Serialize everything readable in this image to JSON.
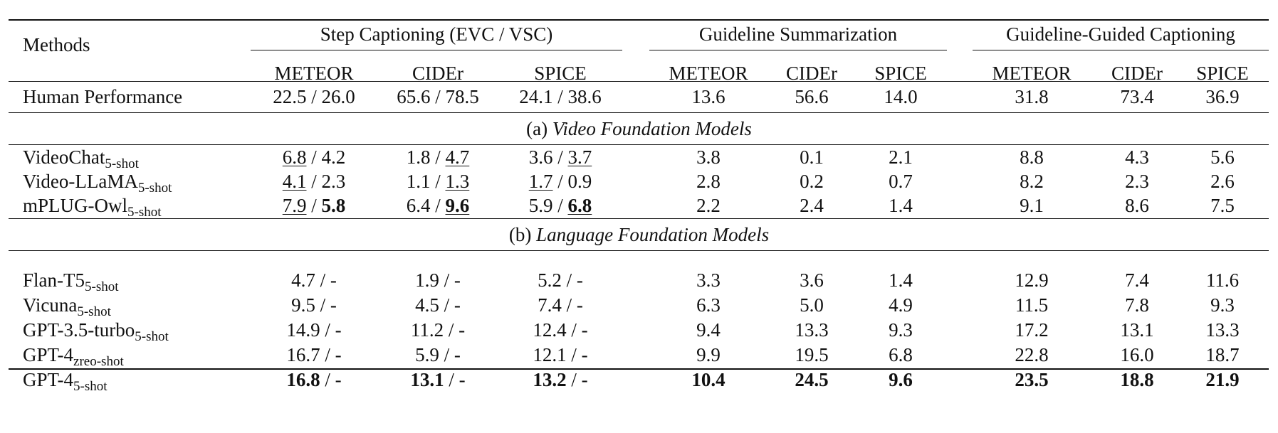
{
  "header": {
    "methods": "Methods",
    "groups": [
      "Step Captioning (EVC / VSC)",
      "Guideline Summarization",
      "Guideline-Guided Captioning"
    ],
    "metrics": [
      "METEOR",
      "CIDEr",
      "SPICE",
      "METEOR",
      "CIDEr",
      "SPICE",
      "METEOR",
      "CIDEr",
      "SPICE"
    ]
  },
  "human_row": {
    "name": "Human Performance",
    "cells": [
      [
        {
          "t": "22.5 / 26.0"
        }
      ],
      [
        {
          "t": "65.6 / 78.5"
        }
      ],
      [
        {
          "t": "24.1 / 38.6"
        }
      ],
      [
        {
          "t": "13.6"
        }
      ],
      [
        {
          "t": "56.6"
        }
      ],
      [
        {
          "t": "14.0"
        }
      ],
      [
        {
          "t": "31.8"
        }
      ],
      [
        {
          "t": "73.4"
        }
      ],
      [
        {
          "t": "36.9"
        }
      ]
    ]
  },
  "sections": [
    {
      "label_prefix": "(a) ",
      "label_italic": "Video Foundation Models",
      "rows": [
        {
          "name": "VideoChat",
          "sub": "5-shot",
          "cells": [
            [
              {
                "t": "6.8",
                "u": true
              },
              {
                "t": " / 4.2"
              }
            ],
            [
              {
                "t": "1.8 / "
              },
              {
                "t": "4.7",
                "u": true
              }
            ],
            [
              {
                "t": "3.6 / "
              },
              {
                "t": "3.7",
                "u": true
              }
            ],
            [
              {
                "t": "3.8"
              }
            ],
            [
              {
                "t": "0.1"
              }
            ],
            [
              {
                "t": "2.1"
              }
            ],
            [
              {
                "t": "8.8"
              }
            ],
            [
              {
                "t": "4.3"
              }
            ],
            [
              {
                "t": "5.6"
              }
            ]
          ]
        },
        {
          "name": "Video-LLaMA",
          "sub": "5-shot",
          "cells": [
            [
              {
                "t": "4.1",
                "u": true
              },
              {
                "t": " / 2.3"
              }
            ],
            [
              {
                "t": "1.1 / "
              },
              {
                "t": "1.3",
                "u": true
              }
            ],
            [
              {
                "t": "1.7",
                "u": true
              },
              {
                "t": " / 0.9"
              }
            ],
            [
              {
                "t": "2.8"
              }
            ],
            [
              {
                "t": "0.2"
              }
            ],
            [
              {
                "t": "0.7"
              }
            ],
            [
              {
                "t": "8.2"
              }
            ],
            [
              {
                "t": "2.3"
              }
            ],
            [
              {
                "t": "2.6"
              }
            ]
          ]
        },
        {
          "name": "mPLUG-Owl",
          "sub": "5-shot",
          "cells": [
            [
              {
                "t": "7.9",
                "u": true
              },
              {
                "t": " / "
              },
              {
                "t": "5.8",
                "b": true
              }
            ],
            [
              {
                "t": "6.4 / "
              },
              {
                "t": "9.6",
                "b": true,
                "u": true
              }
            ],
            [
              {
                "t": "5.9 / "
              },
              {
                "t": "6.8",
                "b": true,
                "u": true
              }
            ],
            [
              {
                "t": "2.2"
              }
            ],
            [
              {
                "t": "2.4"
              }
            ],
            [
              {
                "t": "1.4"
              }
            ],
            [
              {
                "t": "9.1"
              }
            ],
            [
              {
                "t": "8.6"
              }
            ],
            [
              {
                "t": "7.5"
              }
            ]
          ]
        }
      ]
    },
    {
      "label_prefix": "(b) ",
      "label_italic": "Language Foundation Models",
      "rows": [
        {
          "name": "Flan-T5",
          "sub": "5-shot",
          "cells": [
            [
              {
                "t": "4.7 / -"
              }
            ],
            [
              {
                "t": "1.9 / -"
              }
            ],
            [
              {
                "t": "5.2 / -"
              }
            ],
            [
              {
                "t": "3.3"
              }
            ],
            [
              {
                "t": "3.6"
              }
            ],
            [
              {
                "t": "1.4"
              }
            ],
            [
              {
                "t": "12.9"
              }
            ],
            [
              {
                "t": "7.4"
              }
            ],
            [
              {
                "t": "11.6"
              }
            ]
          ]
        },
        {
          "name": "Vicuna",
          "sub": "5-shot",
          "cells": [
            [
              {
                "t": "9.5 / -"
              }
            ],
            [
              {
                "t": "4.5 / -"
              }
            ],
            [
              {
                "t": "7.4 / -"
              }
            ],
            [
              {
                "t": "6.3"
              }
            ],
            [
              {
                "t": "5.0"
              }
            ],
            [
              {
                "t": "4.9"
              }
            ],
            [
              {
                "t": "11.5"
              }
            ],
            [
              {
                "t": "7.8"
              }
            ],
            [
              {
                "t": "9.3"
              }
            ]
          ]
        },
        {
          "name": "GPT-3.5-turbo",
          "sub": "5-shot",
          "cells": [
            [
              {
                "t": "14.9 / -"
              }
            ],
            [
              {
                "t": "11.2 / -"
              }
            ],
            [
              {
                "t": "12.4 / -"
              }
            ],
            [
              {
                "t": "9.4"
              }
            ],
            [
              {
                "t": "13.3"
              }
            ],
            [
              {
                "t": "9.3"
              }
            ],
            [
              {
                "t": "17.2"
              }
            ],
            [
              {
                "t": "13.1"
              }
            ],
            [
              {
                "t": "13.3"
              }
            ]
          ]
        },
        {
          "name": "GPT-4",
          "sub": "zreo-shot",
          "cells": [
            [
              {
                "t": "16.7 / -"
              }
            ],
            [
              {
                "t": "5.9 / -"
              }
            ],
            [
              {
                "t": "12.1 / -"
              }
            ],
            [
              {
                "t": "9.9"
              }
            ],
            [
              {
                "t": "19.5"
              }
            ],
            [
              {
                "t": "6.8"
              }
            ],
            [
              {
                "t": "22.8"
              }
            ],
            [
              {
                "t": "16.0"
              }
            ],
            [
              {
                "t": "18.7"
              }
            ]
          ]
        },
        {
          "name": "GPT-4",
          "sub": "5-shot",
          "cells": [
            [
              {
                "t": "16.8",
                "b": true
              },
              {
                "t": " / -"
              }
            ],
            [
              {
                "t": "13.1",
                "b": true
              },
              {
                "t": " / -"
              }
            ],
            [
              {
                "t": "13.2",
                "b": true
              },
              {
                "t": " / -"
              }
            ],
            [
              {
                "t": "10.4",
                "b": true
              }
            ],
            [
              {
                "t": "24.5",
                "b": true
              }
            ],
            [
              {
                "t": "9.6",
                "b": true
              }
            ],
            [
              {
                "t": "23.5",
                "b": true
              }
            ],
            [
              {
                "t": "18.8",
                "b": true
              }
            ],
            [
              {
                "t": "21.9",
                "b": true
              }
            ]
          ]
        }
      ]
    }
  ]
}
